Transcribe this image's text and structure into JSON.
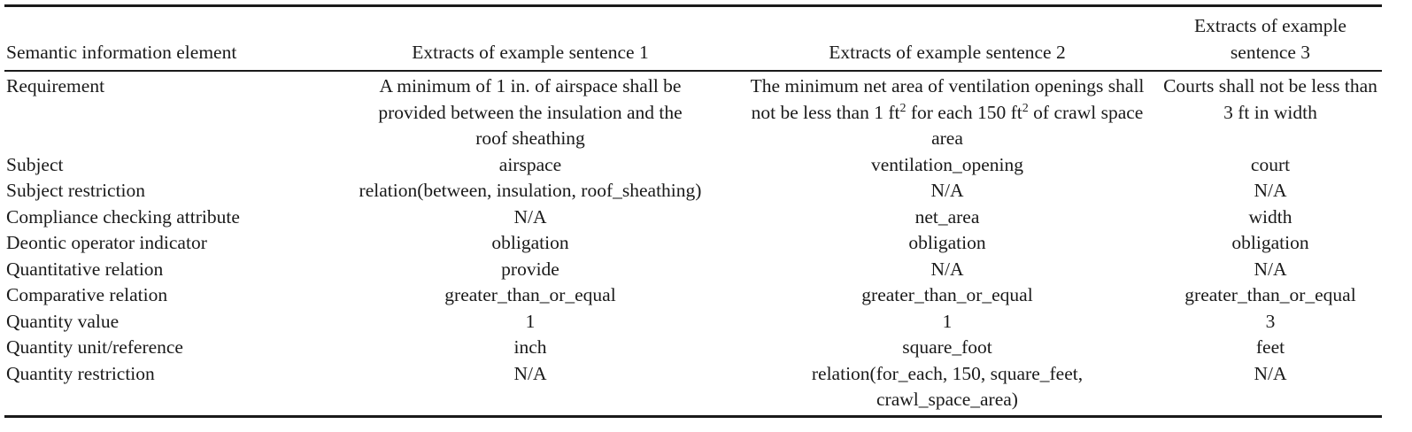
{
  "table": {
    "headers": [
      "Semantic information element",
      "Extracts of example sentence 1",
      "Extracts of example sentence 2",
      "Extracts of example sentence 3"
    ],
    "rows": [
      {
        "element": "Requirement",
        "s1": "A minimum of 1 in. of airspace shall be provided between the insulation and the roof sheathing",
        "s2_parts": [
          "The minimum net area of ventilation openings shall not be less than 1 ft",
          "2",
          " for each 150 ft",
          "2",
          " of crawl space area"
        ],
        "s3": "Courts shall not be less than 3 ft in width"
      },
      {
        "element": "Subject",
        "s1": "airspace",
        "s2": "ventilation_opening",
        "s3": "court"
      },
      {
        "element": "Subject restriction",
        "s1": "relation(between, insulation, roof_sheathing)",
        "s2": "N/A",
        "s3": "N/A"
      },
      {
        "element": "Compliance checking attribute",
        "s1": "N/A",
        "s2": "net_area",
        "s3": "width"
      },
      {
        "element": "Deontic operator indicator",
        "s1": "obligation",
        "s2": "obligation",
        "s3": "obligation"
      },
      {
        "element": "Quantitative relation",
        "s1": "provide",
        "s2": "N/A",
        "s3": "N/A"
      },
      {
        "element": "Comparative relation",
        "s1": "greater_than_or_equal",
        "s2": "greater_than_or_equal",
        "s3": "greater_than_or_equal"
      },
      {
        "element": "Quantity value",
        "s1": "1",
        "s2": "1",
        "s3": "3"
      },
      {
        "element": "Quantity unit/reference",
        "s1": "inch",
        "s2": "square_foot",
        "s3": "feet"
      },
      {
        "element": "Quantity restriction",
        "s1": "N/A",
        "s2_lines": [
          "relation(for_each, 150, square_feet,",
          "crawl_space_area)"
        ],
        "s3": "N/A"
      }
    ]
  }
}
